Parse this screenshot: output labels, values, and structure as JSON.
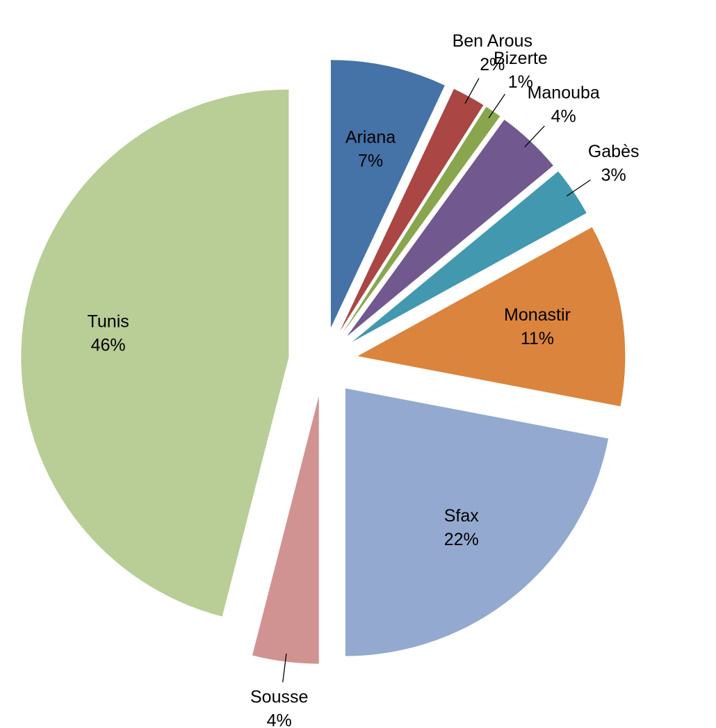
{
  "chart_data": {
    "type": "pie",
    "categories": [
      "Ariana",
      "Ben Arous",
      "Bizerte",
      "Manouba",
      "Gabès",
      "Monastir",
      "Sfax",
      "Sousse",
      "Tunis"
    ],
    "values": [
      7,
      2,
      1,
      4,
      3,
      11,
      22,
      4,
      46
    ],
    "value_labels": [
      "7%",
      "2%",
      "1%",
      "4%",
      "3%",
      "11%",
      "22%",
      "4%",
      "46%"
    ],
    "colors": [
      "#4572a7",
      "#aa4643",
      "#89a54e",
      "#71588f",
      "#4198af",
      "#db843d",
      "#93a9cf",
      "#d19392",
      "#b9cd96"
    ]
  }
}
